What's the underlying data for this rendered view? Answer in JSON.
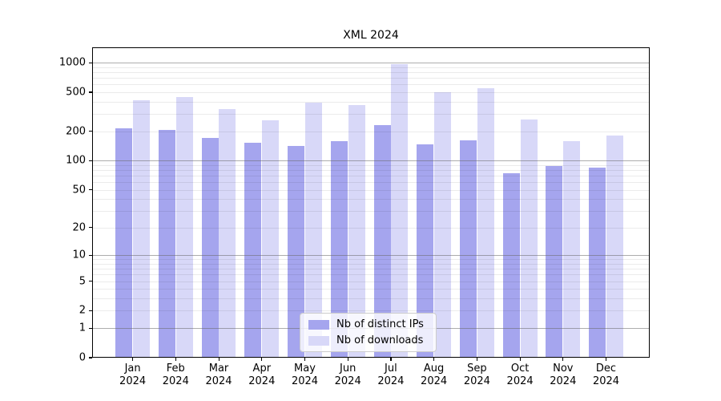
{
  "chart_data": {
    "type": "bar",
    "title": "XML 2024",
    "yscale": "log10(1+x)",
    "ylim": [
      0,
      1430
    ],
    "grid": "on",
    "legend_position": "inside-bottom-center",
    "categories": [
      {
        "label": "Jan",
        "sublabel": "2024"
      },
      {
        "label": "Feb",
        "sublabel": "2024"
      },
      {
        "label": "Mar",
        "sublabel": "2024"
      },
      {
        "label": "Apr",
        "sublabel": "2024"
      },
      {
        "label": "May",
        "sublabel": "2024"
      },
      {
        "label": "Jun",
        "sublabel": "2024"
      },
      {
        "label": "Jul",
        "sublabel": "2024"
      },
      {
        "label": "Aug",
        "sublabel": "2024"
      },
      {
        "label": "Sep",
        "sublabel": "2024"
      },
      {
        "label": "Oct",
        "sublabel": "2024"
      },
      {
        "label": "Nov",
        "sublabel": "2024"
      },
      {
        "label": "Dec",
        "sublabel": "2024"
      }
    ],
    "series": [
      {
        "name": "Nb of distinct IPs",
        "color": "#a5a5ee",
        "values": [
          212,
          205,
          171,
          152,
          141,
          158,
          232,
          148,
          161,
          74,
          88,
          85
        ]
      },
      {
        "name": "Nb of downloads",
        "color": "#d8d8f8",
        "values": [
          415,
          445,
          338,
          258,
          392,
          367,
          965,
          500,
          552,
          262,
          158,
          181
        ]
      }
    ],
    "yticks": [
      1000,
      500,
      200,
      100,
      50,
      20,
      10,
      5,
      2,
      1,
      0
    ],
    "major_gridline_values": [
      1000,
      100,
      10,
      1
    ]
  }
}
